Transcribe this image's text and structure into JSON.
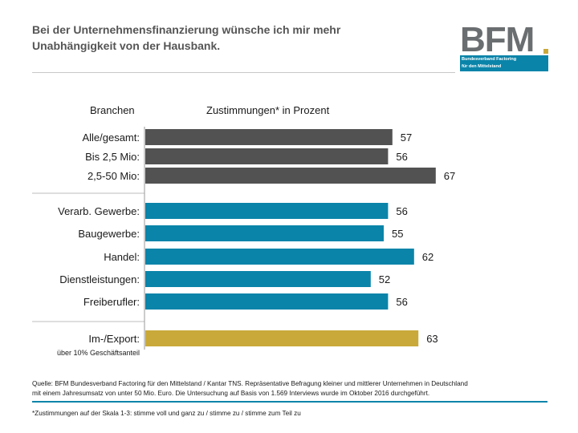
{
  "title": {
    "line1": "Bei der Unternehmensfinanzierung wünsche ich mir mehr",
    "line2": "Unabhängigkeit von der Hausbank."
  },
  "logo": {
    "text": "BFM",
    "line1": "Bundesverband Factoring",
    "line2": "für den Mittelstand"
  },
  "headers": {
    "left": "Branchen",
    "right": "Zustimmungen* in Prozent"
  },
  "chart_data": {
    "type": "bar",
    "orientation": "horizontal",
    "title": "Zustimmungen* in Prozent",
    "categories": [
      "Alle/gesamt:",
      "Bis 2,5 Mio:",
      "2,5-50 Mio:",
      "Verarb. Gewerbe:",
      "Baugewerbe:",
      "Handel:",
      "Dienstleistungen:",
      "Freiberufler:",
      "Im-/Export:"
    ],
    "values": [
      57,
      56,
      67,
      56,
      55,
      62,
      52,
      56,
      63
    ],
    "groups": [
      "size",
      "size",
      "size",
      "industry",
      "industry",
      "industry",
      "industry",
      "industry",
      "trade"
    ],
    "group_colors": {
      "size": "#525252",
      "industry": "#0a84a9",
      "trade": "#c9a93a"
    },
    "sublabels": {
      "8": "über 10% Geschäftsanteil"
    },
    "xlim": [
      0,
      100
    ]
  },
  "footer": {
    "source1": "Quelle: BFM Bundesverband Factoring für den Mittelstand / Kantar TNS. Repräsentative Befragung kleiner und mittlerer Unternehmen in Deutschland",
    "source2": "mit einem Jahresumsatz von unter 50 Mio. Euro. Die Untersuchung auf Basis von 1.569 Interviews wurde im Oktober 2016 durchgeführt.",
    "note": "*Zustimmungen auf der Skala 1-3: stimme voll und ganz zu / stimme zu / stimme zum Teil zu"
  },
  "colors": {
    "accent_blue": "#0a84a9",
    "accent_gold": "#c9a93a",
    "dark_gray": "#525252"
  }
}
